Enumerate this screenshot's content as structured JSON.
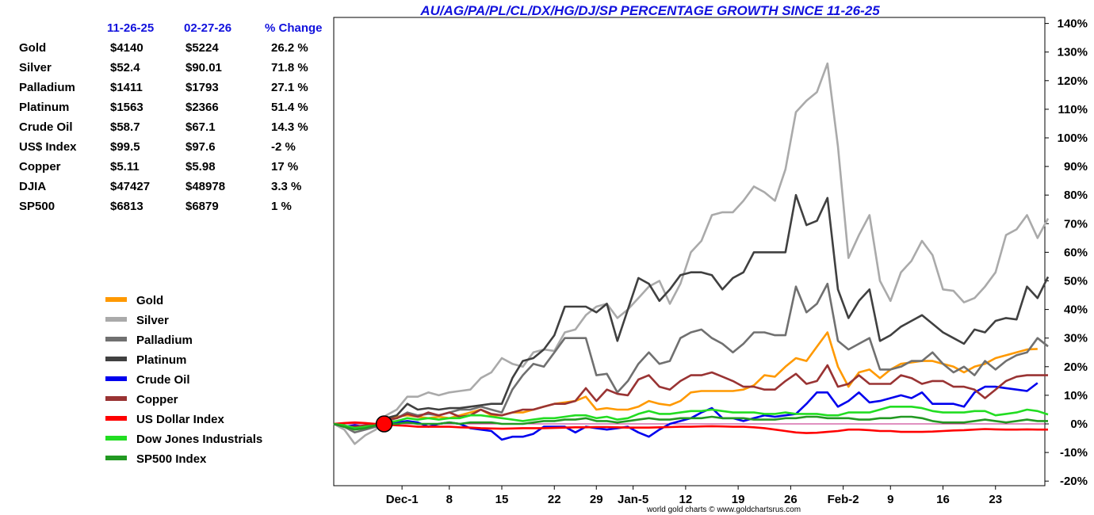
{
  "chart_data": {
    "type": "line",
    "title": "AU/AG/PA/PL/CL/DX/HG/DJ/SP PERCENTAGE GROWTH SINCE 11-26-25",
    "credit": "world gold charts © www.goldchartsrus.com",
    "xlabel": "",
    "ylabel": "",
    "ylim": [
      -20,
      140
    ],
    "y_ticks": [
      {
        "value": 140,
        "label": "140%"
      },
      {
        "value": 130,
        "label": "130%"
      },
      {
        "value": 120,
        "label": "120%"
      },
      {
        "value": 110,
        "label": "110%"
      },
      {
        "value": 100,
        "label": "100%"
      },
      {
        "value": 90,
        "label": "90%"
      },
      {
        "value": 80,
        "label": "80%"
      },
      {
        "value": 70,
        "label": "70%"
      },
      {
        "value": 60,
        "label": "60%"
      },
      {
        "value": 50,
        "label": "50%"
      },
      {
        "value": 40,
        "label": "40%"
      },
      {
        "value": 30,
        "label": "30%"
      },
      {
        "value": 20,
        "label": "20%"
      },
      {
        "value": 10,
        "label": "10%"
      },
      {
        "value": 0,
        "label": "0%"
      },
      {
        "value": -10,
        "label": "-10%"
      },
      {
        "value": -20,
        "label": "-20%"
      }
    ],
    "x_range": [
      0,
      64
    ],
    "x_ticks": [
      {
        "index": 6.5,
        "label": "Dec-1"
      },
      {
        "index": 11,
        "label": "8"
      },
      {
        "index": 16,
        "label": "15"
      },
      {
        "index": 21,
        "label": "22"
      },
      {
        "index": 25,
        "label": "29"
      },
      {
        "index": 28.5,
        "label": "Jan-5"
      },
      {
        "index": 33.5,
        "label": "12"
      },
      {
        "index": 38.5,
        "label": "19"
      },
      {
        "index": 43.5,
        "label": "26"
      },
      {
        "index": 48.5,
        "label": "Feb-2"
      },
      {
        "index": 53,
        "label": "9"
      },
      {
        "index": 58,
        "label": "16"
      },
      {
        "index": 63,
        "label": "23"
      }
    ],
    "start_marker": {
      "index": 4,
      "value": 0
    },
    "table": {
      "headers": [
        "11-26-25",
        "02-27-26",
        "% Change"
      ],
      "rows": [
        {
          "name": "Gold",
          "start": "$4140",
          "end": "$5224",
          "change": "26.2 %"
        },
        {
          "name": "Silver",
          "start": "$52.4",
          "end": "$90.01",
          "change": "71.8 %"
        },
        {
          "name": "Palladium",
          "start": "$1411",
          "end": "$1793",
          "change": "27.1 %"
        },
        {
          "name": "Platinum",
          "start": "$1563",
          "end": "$2366",
          "change": "51.4 %"
        },
        {
          "name": "Crude Oil",
          "start": "$58.7",
          "end": "$67.1",
          "change": "14.3 %"
        },
        {
          "name": "US$ Index",
          "start": "$99.5",
          "end": "$97.6",
          "change": "-2 %"
        },
        {
          "name": "Copper",
          "start": "$5.11",
          "end": "$5.98",
          "change": "17 %"
        },
        {
          "name": "DJIA",
          "start": "$47427",
          "end": "$48978",
          "change": "3.3 %"
        },
        {
          "name": "SP500",
          "start": "$6813",
          "end": "$6879",
          "change": "1 %"
        }
      ]
    },
    "series": [
      {
        "name": "Gold",
        "color": "#ff9900",
        "values": [
          0,
          -1,
          -2,
          -1,
          0,
          1.5,
          2.5,
          3,
          2.5,
          2,
          2.5,
          2,
          3,
          4,
          5,
          3,
          3,
          4,
          4,
          5,
          6,
          7,
          7.5,
          8,
          9.5,
          5,
          5.5,
          5,
          5,
          6,
          8,
          7,
          6.5,
          8,
          11,
          11.5,
          11.5,
          11.5,
          11.5,
          12,
          13.5,
          17,
          16.5,
          20,
          23,
          22,
          27,
          32,
          20,
          13,
          18,
          19,
          16,
          19,
          21,
          21.5,
          22,
          22,
          21,
          20,
          18,
          20,
          21,
          23,
          24,
          25,
          26,
          26.2
        ]
      },
      {
        "name": "Silver",
        "color": "#aaaaaa",
        "values": [
          0,
          -2,
          -7,
          -4,
          -2,
          3,
          5,
          9.5,
          9.5,
          11,
          10,
          11,
          11.5,
          12,
          16,
          18,
          23,
          21,
          20,
          25,
          26,
          25.5,
          32,
          33,
          38,
          41,
          42,
          37,
          40,
          44,
          48,
          50,
          42,
          49,
          60,
          64,
          73,
          74,
          74,
          78,
          83,
          81,
          78,
          89,
          109,
          113,
          116,
          126,
          97,
          58,
          66,
          73,
          50,
          43,
          53,
          57,
          64,
          59,
          47,
          46.5,
          42.5,
          44,
          48,
          53,
          66,
          68,
          73,
          65,
          71.8
        ]
      },
      {
        "name": "Palladium",
        "color": "#707070",
        "values": [
          0,
          -1,
          -3,
          -2,
          -1,
          1,
          2,
          4,
          3,
          3.5,
          3,
          4,
          5,
          5,
          6,
          5,
          4,
          12,
          17,
          21,
          20,
          25,
          30,
          30,
          30,
          17,
          17.5,
          11,
          15,
          21,
          25,
          21,
          22,
          30,
          32,
          33,
          30,
          28,
          25,
          28,
          32,
          32,
          31,
          31,
          48,
          39,
          42,
          49,
          29,
          26,
          28,
          30,
          19,
          19,
          20,
          22,
          22,
          25,
          21,
          18,
          20,
          17,
          22,
          19,
          22,
          24,
          25,
          30,
          27.1
        ]
      },
      {
        "name": "Platinum",
        "color": "#404040",
        "values": [
          0,
          -1,
          -1.5,
          -1,
          0,
          2,
          3,
          7,
          5,
          5.5,
          5,
          5.5,
          5.5,
          6,
          6.5,
          7,
          7,
          16,
          22,
          23,
          26,
          31,
          41,
          41,
          41,
          39,
          42,
          29,
          40,
          51,
          49,
          43,
          47,
          52,
          53,
          53,
          52,
          47,
          51,
          53,
          60,
          60,
          60,
          60,
          80,
          69.5,
          71,
          79,
          47,
          37,
          43,
          47,
          29,
          31,
          34,
          36,
          38,
          35,
          32,
          30,
          28,
          33,
          32,
          36,
          37,
          36.5,
          48,
          44,
          51.4
        ]
      },
      {
        "name": "Crude Oil",
        "color": "#0000ee",
        "values": [
          0,
          -1,
          -0.5,
          -1,
          -0.5,
          0,
          0.5,
          1,
          0.5,
          -1,
          0,
          0.5,
          0,
          -1.5,
          -2,
          -2.5,
          -5.5,
          -4.5,
          -4.5,
          -3.5,
          -1,
          -1,
          -1,
          -3,
          -1,
          -1.5,
          -2,
          -1.5,
          -1,
          -3,
          -4.5,
          -2,
          0,
          1,
          2,
          4,
          5.5,
          2,
          2,
          1,
          2,
          3,
          2.5,
          3,
          3.5,
          7,
          11,
          11,
          6,
          8,
          11,
          7.5,
          8,
          9,
          10,
          9,
          11,
          7,
          7,
          7,
          6,
          11,
          13,
          13,
          12.5,
          12,
          11.5,
          14.3
        ]
      },
      {
        "name": "Copper",
        "color": "#993333",
        "values": [
          0,
          -1,
          -1,
          -0.5,
          0,
          1.5,
          2,
          3.5,
          2.5,
          4,
          3,
          4,
          2.5,
          3,
          5,
          3.5,
          3,
          4,
          5,
          5,
          6,
          7,
          7,
          8,
          12.5,
          8,
          12,
          10.5,
          10,
          15.5,
          17,
          13,
          12,
          15,
          17,
          17,
          18,
          16.5,
          15,
          13,
          13,
          12,
          12,
          15,
          17.5,
          14,
          15,
          20.5,
          13,
          14,
          17,
          14,
          14,
          14,
          17,
          16,
          14,
          15,
          15,
          13,
          13,
          12,
          9,
          12,
          15,
          16.5,
          17,
          17,
          17
        ]
      },
      {
        "name": "US Dollar Index",
        "color": "#ff0000",
        "values": [
          0,
          0.3,
          0.5,
          0.3,
          0,
          -0.3,
          -0.5,
          -0.7,
          -1,
          -1,
          -1,
          -1,
          -1.2,
          -1.3,
          -1.5,
          -1.6,
          -1.7,
          -1.6,
          -1.5,
          -1.5,
          -1.5,
          -1.4,
          -1.3,
          -1.2,
          -1.2,
          -1.1,
          -1.1,
          -1.2,
          -1.3,
          -1.3,
          -1.3,
          -1.2,
          -1.1,
          -1,
          -1,
          -0.9,
          -0.8,
          -0.9,
          -1,
          -1,
          -1.2,
          -1.5,
          -2,
          -2.5,
          -3,
          -3.2,
          -3.1,
          -2.8,
          -2.5,
          -2,
          -2,
          -2.2,
          -2.5,
          -2.5,
          -2.8,
          -2.8,
          -2.8,
          -2.7,
          -2.5,
          -2.3,
          -2.2,
          -2,
          -1.8,
          -1.9,
          -2,
          -2,
          -1.9,
          -2,
          -2
        ]
      },
      {
        "name": "Dow Jones Industrials",
        "color": "#22dd22",
        "values": [
          0,
          -0.5,
          -1.5,
          -1,
          -0.5,
          0.5,
          1,
          2,
          1.5,
          2,
          1.5,
          2,
          2,
          3,
          3,
          2.5,
          2,
          1.5,
          1,
          1.5,
          2,
          2,
          2.5,
          3,
          3,
          2,
          2.5,
          1.5,
          2,
          3.5,
          4.5,
          3.5,
          3.5,
          4,
          4.5,
          4.5,
          5,
          4.5,
          4,
          4,
          4,
          3.5,
          3.5,
          4,
          3.5,
          3.5,
          3.5,
          3,
          3,
          4,
          4,
          4,
          5,
          6,
          6,
          6,
          5.5,
          4.5,
          4,
          4,
          4,
          4.5,
          4.5,
          3,
          3.5,
          4,
          5,
          4.5,
          3.3
        ]
      },
      {
        "name": "SP500 Index",
        "color": "#229922",
        "values": [
          0,
          -1,
          -2,
          -1.5,
          -0.5,
          0,
          0,
          0.5,
          0,
          0,
          0,
          0.5,
          0,
          0.5,
          0.5,
          0.5,
          0,
          0,
          0,
          0.5,
          1,
          1,
          1.5,
          1.5,
          2,
          1,
          1,
          0.5,
          1,
          1.5,
          2,
          1.5,
          1.5,
          2,
          2,
          2,
          2.5,
          2,
          2,
          2,
          1.5,
          1.5,
          1.5,
          2,
          2,
          2.5,
          2.5,
          2,
          2,
          2,
          1.5,
          1.5,
          2,
          2,
          2.5,
          2.5,
          2,
          1,
          0.5,
          0.5,
          0.5,
          1,
          1.5,
          1,
          0.5,
          1,
          1.5,
          1,
          1
        ]
      }
    ]
  }
}
